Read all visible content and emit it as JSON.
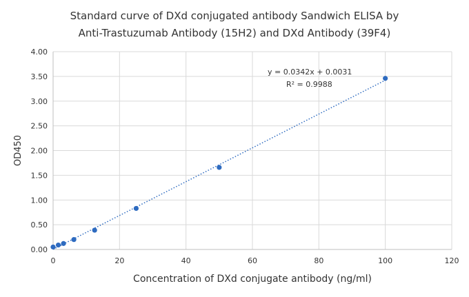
{
  "chart_data": {
    "type": "scatter",
    "title_lines": [
      "Standard curve of DXd conjugated antibody Sandwich ELISA by",
      "Anti-Trastuzumab Antibody (15H2) and DXd Antibody (39F4)"
    ],
    "xlabel": "Concentration of DXd conjugate antibody (ng/ml)",
    "ylabel": "OD450",
    "xlim": [
      0,
      120
    ],
    "ylim": [
      0,
      4
    ],
    "xticks": [
      0,
      20,
      40,
      60,
      80,
      100,
      120
    ],
    "yticks": [
      "0.00",
      "0.50",
      "1.00",
      "1.50",
      "2.00",
      "2.50",
      "3.00",
      "3.50",
      "4.00"
    ],
    "grid": true,
    "series": [
      {
        "name": "OD450",
        "color": "#2e6bc0",
        "x": [
          0,
          1.5625,
          3.125,
          6.25,
          12.5,
          25,
          50,
          100
        ],
        "y": [
          0.05,
          0.09,
          0.12,
          0.2,
          0.39,
          0.83,
          1.66,
          3.46
        ]
      }
    ],
    "trendline": {
      "slope": 0.0342,
      "intercept": 0.0031,
      "equation": "y = 0.0342x + 0.0031",
      "r2": "R² = 0.9988"
    }
  }
}
